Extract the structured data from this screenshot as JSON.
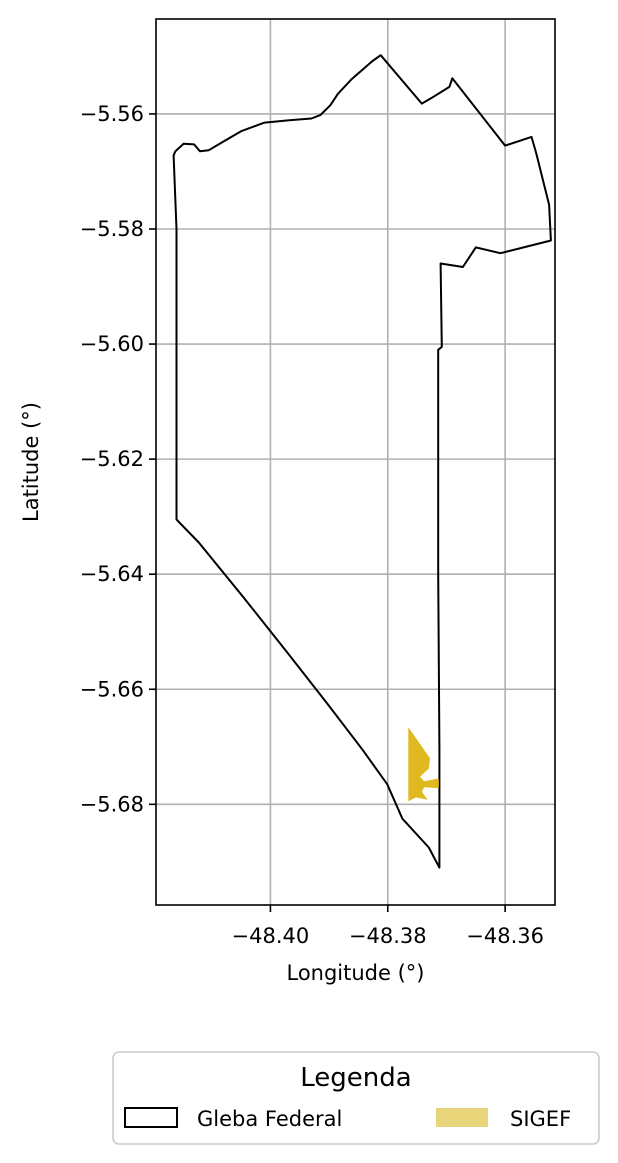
{
  "chart_data": {
    "type": "map",
    "xlabel": "Longitude (°)",
    "ylabel": "Latitude (°)",
    "xlim": [
      -48.4195,
      -48.3515
    ],
    "ylim": [
      -5.6975,
      -5.5435
    ],
    "x_ticks": [
      -48.4,
      -48.38,
      -48.36
    ],
    "x_tick_labels": [
      "−48.40",
      "−48.38",
      "−48.36"
    ],
    "y_ticks": [
      -5.56,
      -5.58,
      -5.6,
      -5.62,
      -5.64,
      -5.66,
      -5.68
    ],
    "y_tick_labels": [
      "−5.56",
      "−5.58",
      "−5.60",
      "−5.62",
      "−5.64",
      "−5.66",
      "−5.68"
    ],
    "grid": true,
    "legend": {
      "title": "Legenda",
      "placement": "bottom-center",
      "entries": [
        {
          "label": "Gleba Federal",
          "style": "outline",
          "color": "#000000"
        },
        {
          "label": "SIGEF",
          "style": "fill",
          "color": "#e8d57a"
        }
      ]
    },
    "layers": [
      {
        "name": "Gleba Federal",
        "style": "outline",
        "stroke": "#000000",
        "coordinates": [
          [
            -48.416,
            -5.6305
          ],
          [
            -48.4122,
            -5.6345
          ],
          [
            -48.4046,
            -5.644
          ],
          [
            -48.3972,
            -5.6535
          ],
          [
            -48.3903,
            -5.6625
          ],
          [
            -48.3843,
            -5.6705
          ],
          [
            -48.3801,
            -5.6765
          ],
          [
            -48.3775,
            -5.6825
          ],
          [
            -48.373,
            -5.6875
          ],
          [
            -48.3712,
            -5.691
          ],
          [
            -48.3712,
            -5.67
          ],
          [
            -48.3714,
            -5.64
          ],
          [
            -48.3714,
            -5.601
          ],
          [
            -48.3708,
            -5.6005
          ],
          [
            -48.371,
            -5.586
          ],
          [
            -48.3672,
            -5.5866
          ],
          [
            -48.365,
            -5.5832
          ],
          [
            -48.3608,
            -5.5842
          ],
          [
            -48.3522,
            -5.582
          ],
          [
            -48.3525,
            -5.5758
          ],
          [
            -48.3547,
            -5.5668
          ],
          [
            -48.3555,
            -5.564
          ],
          [
            -48.36,
            -5.5655
          ],
          [
            -48.369,
            -5.5538
          ],
          [
            -48.3695,
            -5.5553
          ],
          [
            -48.3725,
            -5.5572
          ],
          [
            -48.3742,
            -5.5582
          ],
          [
            -48.3812,
            -5.5498
          ],
          [
            -48.3826,
            -5.5508
          ],
          [
            -48.3862,
            -5.554
          ],
          [
            -48.3885,
            -5.5565
          ],
          [
            -48.3898,
            -5.5585
          ],
          [
            -48.3915,
            -5.5602
          ],
          [
            -48.393,
            -5.5608
          ],
          [
            -48.3968,
            -5.5611
          ],
          [
            -48.401,
            -5.5615
          ],
          [
            -48.405,
            -5.563
          ],
          [
            -48.408,
            -5.5648
          ],
          [
            -48.4105,
            -5.5663
          ],
          [
            -48.412,
            -5.5665
          ],
          [
            -48.413,
            -5.5653
          ],
          [
            -48.4148,
            -5.5652
          ],
          [
            -48.4162,
            -5.5665
          ],
          [
            -48.4165,
            -5.5672
          ],
          [
            -48.416,
            -5.58
          ],
          [
            -48.416,
            -5.6305
          ]
        ]
      },
      {
        "name": "SIGEF",
        "style": "fill",
        "fill": "#e0b81f",
        "coordinates": [
          [
            -48.3765,
            -5.6666
          ],
          [
            -48.3728,
            -5.672
          ],
          [
            -48.373,
            -5.6738
          ],
          [
            -48.3738,
            -5.6745
          ],
          [
            -48.3745,
            -5.6752
          ],
          [
            -48.3738,
            -5.676
          ],
          [
            -48.3713,
            -5.6755
          ],
          [
            -48.3713,
            -5.6772
          ],
          [
            -48.3738,
            -5.677
          ],
          [
            -48.3742,
            -5.6778
          ],
          [
            -48.3732,
            -5.6792
          ],
          [
            -48.3752,
            -5.6788
          ],
          [
            -48.3765,
            -5.6795
          ]
        ]
      }
    ]
  }
}
